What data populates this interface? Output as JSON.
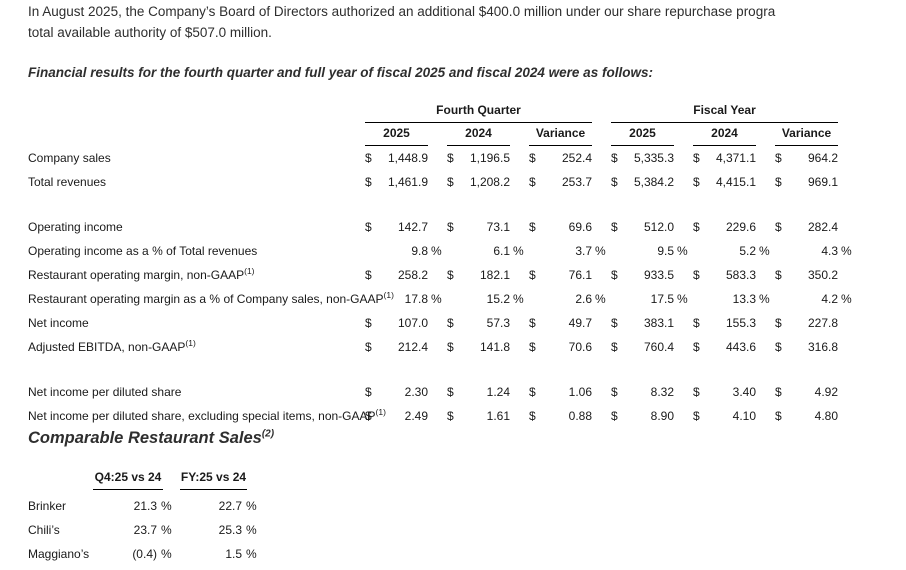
{
  "page": {
    "paragraph_line1": "In August 2025, the Company’s Board of Directors authorized an additional $400.0 million under our share repurchase progra",
    "paragraph_line2": "total available authority of $507.0 million.",
    "intro_heading": "Financial results for the fourth quarter and full year of fiscal 2025 and fiscal 2024 were as follows:"
  },
  "financial_table": {
    "col_groups": [
      {
        "label": "Fourth Quarter"
      },
      {
        "label": "Fiscal Year"
      }
    ],
    "col_headers": [
      "2025",
      "2024",
      "Variance",
      "2025",
      "2024",
      "Variance"
    ],
    "rows": [
      {
        "label": "Company sales",
        "sup": "",
        "type": "dollar",
        "values": [
          "1,448.9",
          "1,196.5",
          "252.4",
          "5,335.3",
          "4,371.1",
          "964.2"
        ]
      },
      {
        "label": "Total revenues",
        "sup": "",
        "type": "dollar",
        "values": [
          "1,461.9",
          "1,208.2",
          "253.7",
          "5,384.2",
          "4,415.1",
          "969.1"
        ]
      },
      {
        "type": "spacer"
      },
      {
        "label": "Operating income",
        "sup": "",
        "type": "dollar",
        "values": [
          "142.7",
          "73.1",
          "69.6",
          "512.0",
          "229.6",
          "282.4"
        ]
      },
      {
        "label": "Operating income as a % of Total revenues",
        "sup": "",
        "type": "percent",
        "values": [
          "9.8",
          "6.1",
          "3.7",
          "9.5",
          "5.2",
          "4.3"
        ]
      },
      {
        "label": "Restaurant operating margin, non-GAAP",
        "sup": "(1)",
        "type": "dollar",
        "values": [
          "258.2",
          "182.1",
          "76.1",
          "933.5",
          "583.3",
          "350.2"
        ]
      },
      {
        "label": "Restaurant operating margin as a % of Company sales, non-GAAP",
        "sup": "(1)",
        "type": "percent",
        "values": [
          "17.8",
          "15.2",
          "2.6",
          "17.5",
          "13.3",
          "4.2"
        ]
      },
      {
        "label": "Net income",
        "sup": "",
        "type": "dollar",
        "values": [
          "107.0",
          "57.3",
          "49.7",
          "383.1",
          "155.3",
          "227.8"
        ]
      },
      {
        "label": "Adjusted EBITDA, non-GAAP",
        "sup": "(1)",
        "type": "dollar",
        "values": [
          "212.4",
          "141.8",
          "70.6",
          "760.4",
          "443.6",
          "316.8"
        ]
      },
      {
        "type": "spacer"
      },
      {
        "label": "Net income per diluted share",
        "sup": "",
        "type": "dollar",
        "values": [
          "2.30",
          "1.24",
          "1.06",
          "8.32",
          "3.40",
          "4.92"
        ]
      },
      {
        "label": "Net income per diluted share, excluding special items, non-GAAP",
        "sup": "(1)",
        "type": "dollar",
        "values": [
          "2.49",
          "1.61",
          "0.88",
          "8.90",
          "4.10",
          "4.80"
        ]
      }
    ]
  },
  "comparable": {
    "heading": "Comparable Restaurant Sales",
    "heading_sup": "(2)",
    "col_headers": [
      "Q4:25 vs 24",
      "FY:25 vs 24"
    ],
    "rows": [
      {
        "label": "Brinker",
        "values": [
          "21.3",
          "22.7"
        ]
      },
      {
        "label": "Chili’s",
        "values": [
          "23.7",
          "25.3"
        ]
      },
      {
        "label": "Maggiano’s",
        "values": [
          "(0.4)",
          "1.5"
        ]
      }
    ]
  }
}
